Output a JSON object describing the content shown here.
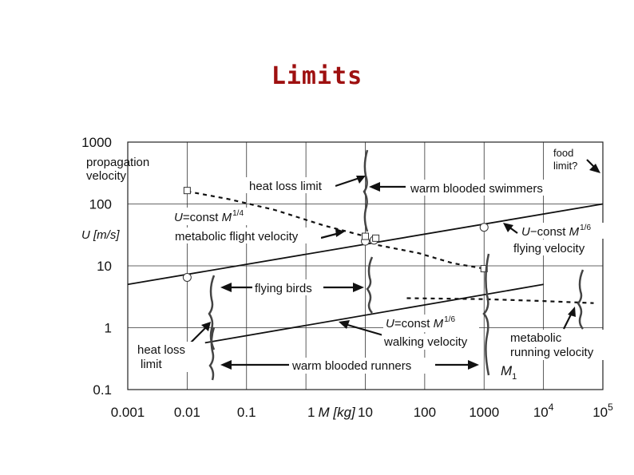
{
  "slide_title": "Limits",
  "chart_data": {
    "type": "line",
    "x_scale": "log",
    "y_scale": "log",
    "xlim": [
      0.001,
      100000
    ],
    "ylim": [
      0.1,
      1000
    ],
    "grid": true,
    "xlabel_prefix": "1",
    "xlabel": "M [kg]",
    "ylabel": "U [m/s]",
    "x_ticks": [
      {
        "value": 0.001,
        "label": "0.001"
      },
      {
        "value": 0.01,
        "label": "0.01"
      },
      {
        "value": 0.1,
        "label": "0.1"
      },
      {
        "value": 10,
        "label": "10"
      },
      {
        "value": 100,
        "label": "100"
      },
      {
        "value": 1000,
        "label": "1000"
      },
      {
        "value": 10000,
        "base": "10",
        "exp": "4"
      },
      {
        "value": 100000,
        "base": "10",
        "exp": "5"
      }
    ],
    "y_ticks": [
      {
        "value": 1000,
        "label": "1000"
      },
      {
        "value": 100,
        "label": "100"
      },
      {
        "value": 10,
        "label": "10"
      },
      {
        "value": 1,
        "label": "1"
      },
      {
        "value": 0.1,
        "label": "0.1"
      }
    ],
    "series": [
      {
        "style": "solid",
        "x": [
          0.001,
          100000
        ],
        "y": [
          5,
          100
        ]
      },
      {
        "style": "solid",
        "x": [
          0.02,
          10000
        ],
        "y": [
          0.57,
          5
        ]
      },
      {
        "style": "dashed",
        "x": [
          0.01,
          0.05,
          0.3,
          2,
          10,
          15,
          80,
          300,
          1000
        ],
        "y": [
          160,
          120,
          80,
          45,
          30,
          22,
          16,
          11,
          9
        ]
      },
      {
        "style": "dashed",
        "x": [
          50,
          1000,
          10000,
          70000
        ],
        "y": [
          3,
          2.9,
          2.7,
          2.5
        ]
      }
    ],
    "circle_markers": [
      {
        "x": 0.01,
        "y": 6.5
      },
      {
        "x": 10,
        "y": 25
      },
      {
        "x": 14,
        "y": 26
      },
      {
        "x": 1000,
        "y": 42
      }
    ],
    "square_markers": [
      {
        "x": 0.01,
        "y": 165
      },
      {
        "x": 10,
        "y": 30
      },
      {
        "x": 15,
        "y": 28
      },
      {
        "x": 1000,
        "y": 9
      }
    ],
    "annotations": {
      "propagation": [
        "propagation",
        "velocity"
      ],
      "food_limit": [
        "food",
        "limit?"
      ],
      "heat_loss_limit": "heat loss limit",
      "warm_blooded_swimmers": "warm blooded swimmers",
      "u_const_m14": {
        "prefix": "U",
        "mid": "=const ",
        "m": "M",
        "exp": "1/4"
      },
      "metabolic_flight": "metabolic flight velocity",
      "u_const_m16_flying": {
        "prefix": "U",
        "mid": "−const ",
        "m": "M",
        "exp": "1/6"
      },
      "flying_velocity": "flying velocity",
      "flying_birds": "flying birds",
      "u_const_m16_walking": {
        "prefix": "U",
        "mid": "=const ",
        "m": "M",
        "exp": "1/6"
      },
      "walking_velocity": "walking velocity",
      "metabolic_running": [
        "metabolic",
        "running velocity"
      ],
      "heat_loss_left": [
        "heat loss",
        "limit"
      ],
      "warm_blooded_runners": "warm blooded runners",
      "m1": {
        "m": "M",
        "sub": "1"
      }
    }
  }
}
